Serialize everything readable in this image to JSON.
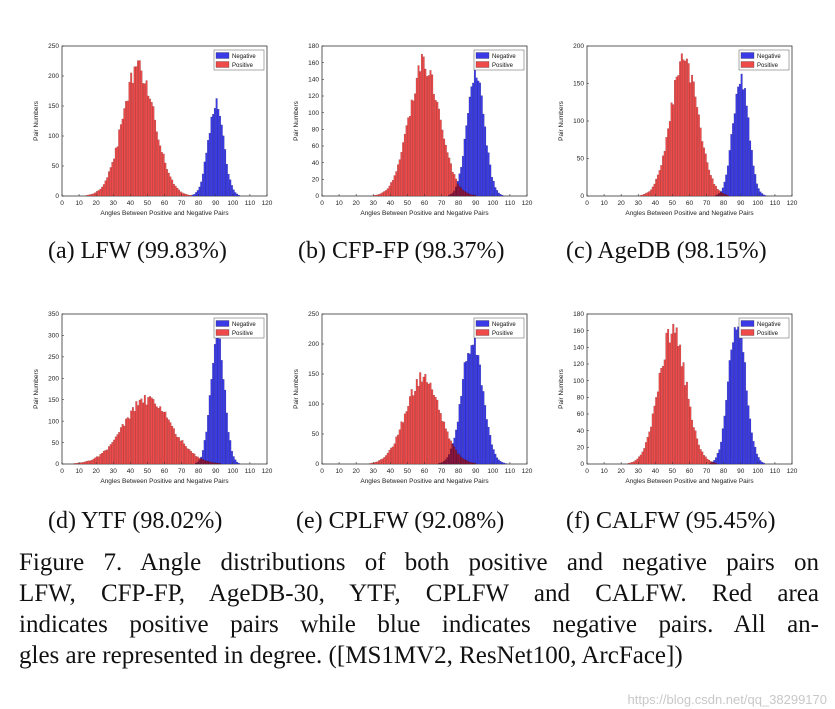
{
  "legend": {
    "negative": "Negative",
    "positive": "Positive"
  },
  "colors": {
    "negative": "#3a3ae6",
    "positive": "#ee4a4a",
    "overlap": "#8c1640"
  },
  "figure_caption": {
    "lines": [
      "Figure 7. Angle distributions of both positive and negative pairs on",
      "LFW, CFP-FP, AgeDB-30, YTF, CPLFW and CALFW. Red area",
      "indicates positive pairs while blue indicates negative pairs. All an-",
      "gles are represented in degree. ([MS1MV2, ResNet100, ArcFace])"
    ]
  },
  "watermark": "https://blog.csdn.net/qq_38299170",
  "chart_data": [
    {
      "id": "a",
      "type": "bar",
      "caption": "(a)  LFW (99.83%)",
      "xlabel": "Angles Between Positive and Negative Pairs",
      "ylabel": "Pair Numbers",
      "xlim": [
        0,
        120
      ],
      "ylim": [
        0,
        250
      ],
      "xticks": [
        0,
        10,
        20,
        30,
        40,
        50,
        60,
        70,
        80,
        90,
        100,
        110,
        120
      ],
      "yticks": [
        0,
        50,
        100,
        150,
        200,
        250
      ],
      "series": [
        {
          "name": "Positive",
          "mean": 45,
          "sd": 9.5,
          "peak": 212
        },
        {
          "name": "Negative",
          "mean": 90,
          "sd": 4.5,
          "peak": 153
        }
      ]
    },
    {
      "id": "b",
      "type": "bar",
      "caption": "(b)  CFP-FP (98.37%)",
      "xlabel": "Angles Between Positive and Negative Pairs",
      "ylabel": "Pair Numbers",
      "xlim": [
        0,
        120
      ],
      "ylim": [
        0,
        180
      ],
      "xticks": [
        0,
        10,
        20,
        30,
        40,
        50,
        60,
        70,
        80,
        90,
        100,
        110,
        120
      ],
      "yticks": [
        0,
        20,
        40,
        60,
        80,
        100,
        120,
        140,
        160,
        180
      ],
      "series": [
        {
          "name": "Positive",
          "mean": 60,
          "sd": 9,
          "peak": 160
        },
        {
          "name": "Negative",
          "mean": 90,
          "sd": 5,
          "peak": 150
        }
      ]
    },
    {
      "id": "c",
      "type": "bar",
      "caption": "(c)  AgeDB (98.15%)",
      "xlabel": "Angles Between Positive and Negative Pairs",
      "ylabel": "Pair Numbers",
      "xlim": [
        0,
        120
      ],
      "ylim": [
        0,
        200
      ],
      "xticks": [
        0,
        10,
        20,
        30,
        40,
        50,
        60,
        70,
        80,
        90,
        100,
        110,
        120
      ],
      "yticks": [
        0,
        50,
        100,
        150,
        200
      ],
      "series": [
        {
          "name": "Positive",
          "mean": 57,
          "sd": 8,
          "peak": 180
        },
        {
          "name": "Negative",
          "mean": 90,
          "sd": 4.5,
          "peak": 162
        }
      ]
    },
    {
      "id": "d",
      "type": "bar",
      "caption": "(d)  YTF (98.02%)",
      "xlabel": "Angles Between Positive and Negative Pairs",
      "ylabel": "Pair Numbers",
      "xlim": [
        0,
        120
      ],
      "ylim": [
        0,
        350
      ],
      "xticks": [
        0,
        10,
        20,
        30,
        40,
        50,
        60,
        70,
        80,
        90,
        100,
        110,
        120
      ],
      "yticks": [
        0,
        50,
        100,
        150,
        200,
        250,
        300,
        350
      ],
      "series": [
        {
          "name": "Positive",
          "mean": 50,
          "sd": 14,
          "peak": 150
        },
        {
          "name": "Negative",
          "mean": 91,
          "sd": 4,
          "peak": 300
        }
      ]
    },
    {
      "id": "e",
      "type": "bar",
      "caption": "(e)  CPLFW (92.08%)",
      "xlabel": "Angles Between Positive and Negative Pairs",
      "ylabel": "Pair Numbers",
      "xlim": [
        0,
        120
      ],
      "ylim": [
        0,
        250
      ],
      "xticks": [
        0,
        10,
        20,
        30,
        40,
        50,
        60,
        70,
        80,
        90,
        100,
        110,
        120
      ],
      "yticks": [
        0,
        50,
        100,
        150,
        200,
        250
      ],
      "series": [
        {
          "name": "Positive",
          "mean": 59,
          "sd": 10,
          "peak": 145
        },
        {
          "name": "Negative",
          "mean": 88,
          "sd": 6,
          "peak": 208
        }
      ]
    },
    {
      "id": "f",
      "type": "bar",
      "caption": "(f)  CALFW (95.45%)",
      "xlabel": "Angles Between Positive and Negative Pairs",
      "ylabel": "Pair Numbers",
      "xlim": [
        0,
        120
      ],
      "ylim": [
        0,
        180
      ],
      "xticks": [
        0,
        10,
        20,
        30,
        40,
        50,
        60,
        70,
        80,
        90,
        100,
        110,
        120
      ],
      "yticks": [
        0,
        20,
        40,
        60,
        80,
        100,
        120,
        140,
        160,
        180
      ],
      "series": [
        {
          "name": "Positive",
          "mean": 50,
          "sd": 8,
          "peak": 160
        },
        {
          "name": "Negative",
          "mean": 88,
          "sd": 5,
          "peak": 172
        }
      ]
    }
  ]
}
